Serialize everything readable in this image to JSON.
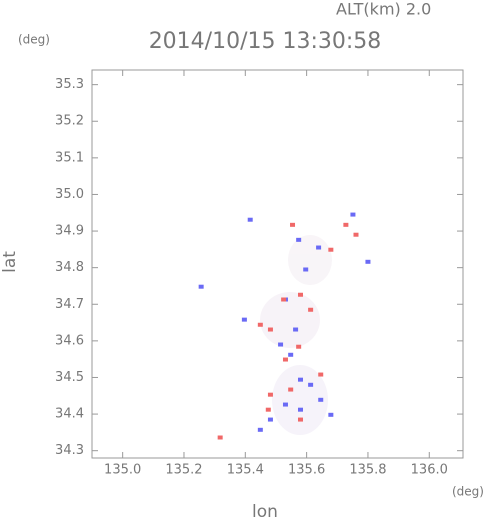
{
  "chart_data": {
    "type": "scatter",
    "title": "2014/10/15 13:30:58",
    "altitude_label": "ALT(km)  2.0",
    "y_unit": "(deg)",
    "x_unit": "(deg)",
    "x_label": "lon",
    "y_label": "lat",
    "xlim": [
      134.9,
      136.11
    ],
    "ylim": [
      34.28,
      35.34
    ],
    "xticks": [
      {
        "value": 135.0,
        "label": "135.0"
      },
      135.2,
      135.4,
      135.6,
      135.8,
      {
        "value": 136.0,
        "label": "136.0"
      }
    ],
    "yticks": [
      34.3,
      34.4,
      34.5,
      34.6,
      34.7,
      34.8,
      34.9,
      {
        "value": 35.0,
        "label": "35.0"
      },
      35.1,
      35.2,
      35.3
    ],
    "series": [
      {
        "color": "#6a6af5",
        "x": [
          135.256,
          135.397,
          135.574,
          135.639,
          135.597,
          135.751,
          135.8,
          135.515,
          135.58,
          135.531,
          135.58,
          135.646,
          135.482,
          135.613,
          135.449,
          135.548,
          135.416,
          135.679,
          135.531,
          135.564
        ],
        "values": [
          34.748,
          34.658,
          34.876,
          34.855,
          34.795,
          34.945,
          34.816,
          34.59,
          34.494,
          34.426,
          34.412,
          34.439,
          34.385,
          34.48,
          34.357,
          34.562,
          34.931,
          34.398,
          34.713,
          34.631
        ]
      },
      {
        "color": "#f06868",
        "x": [
          135.554,
          135.58,
          135.525,
          135.482,
          135.574,
          135.531,
          135.482,
          135.475,
          135.58,
          135.646,
          135.679,
          135.728,
          135.761,
          135.613,
          135.449,
          135.548,
          135.318
        ],
        "values": [
          34.917,
          34.726,
          34.713,
          34.631,
          34.584,
          34.549,
          34.453,
          34.412,
          34.385,
          34.508,
          34.849,
          34.917,
          34.89,
          34.685,
          34.644,
          34.467,
          34.336
        ]
      }
    ]
  }
}
